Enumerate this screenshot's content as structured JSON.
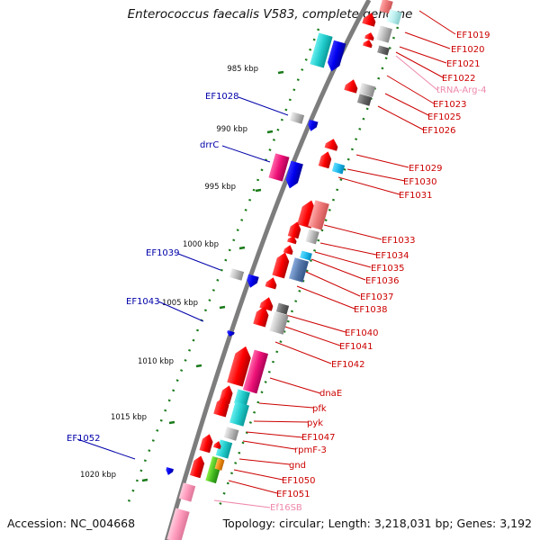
{
  "title": "Enterococcus faecalis V583, complete genome",
  "footer": {
    "accession": "Accession: NC_004668",
    "summary": "Topology: circular; Length: 3,218,031 bp; Genes: 3,192"
  },
  "colors": {
    "backbone": "#7a7a7a",
    "tick": "#1a7a1a",
    "label_red": "#cc0000",
    "label_blue": "#0000aa",
    "label_pink": "#ee88aa"
  },
  "ticks": [
    "985 kbp",
    "990 kbp",
    "995 kbp",
    "1000 kbp",
    "1005 kbp",
    "1010 kbp",
    "1015 kbp",
    "1020 kbp"
  ],
  "left_labels": [
    "EF1028",
    "drrC",
    "EF1039",
    "EF1043",
    "EF1052"
  ],
  "right_labels": [
    "EF1019",
    "EF1020",
    "EF1021",
    "EF1022",
    "tRNA-Arg-4",
    "EF1023",
    "EF1025",
    "EF1026",
    "EF1029",
    "EF1030",
    "EF1031",
    "EF1033",
    "EF1034",
    "EF1035",
    "EF1036",
    "EF1037",
    "EF1038",
    "EF1040",
    "EF1041",
    "EF1042",
    "dnaE",
    "pfk",
    "pyk",
    "EF1047",
    "rpmF-3",
    "gnd",
    "EF1050",
    "EF1051",
    "Ef16SB"
  ]
}
